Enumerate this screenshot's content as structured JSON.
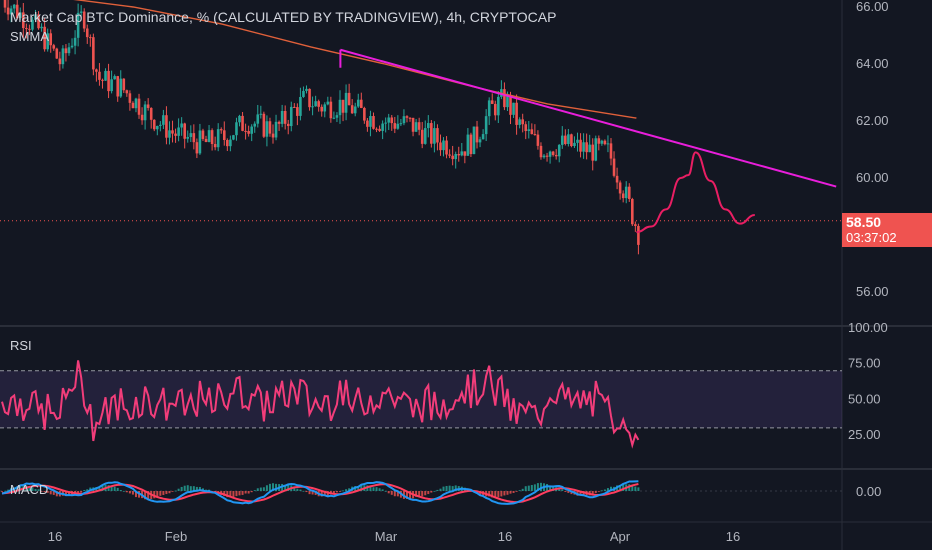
{
  "header": {
    "title": "Market Cap BTC Dominance, % (CALCULATED BY TRADINGVIEW), 4h, CRYPTOCAP",
    "indicator": "SMMA"
  },
  "price_tag": {
    "value": "58.50",
    "countdown": "03:37:02"
  },
  "panes": {
    "rsi_label": "RSI",
    "macd_label": "MACD"
  },
  "colors": {
    "background": "#131722",
    "up_candle": "#26a69a",
    "down_candle": "#ef5350",
    "smma": "#e0603a",
    "trendline": "#e91edb",
    "projection": "#e91e63",
    "rsi_line": "#f23d7a",
    "rsi_band": "#7e57c2",
    "macd_line": "#2196f3",
    "signal_line": "#ff3d5f"
  },
  "chart_data": [
    {
      "type": "candlestick",
      "title": "Market Cap BTC Dominance, % (CALCULATED BY TRADINGVIEW), 4h, CRYPTOCAP",
      "x_ticks": [
        "16",
        "Feb",
        "Mar",
        "16",
        "Apr",
        "16"
      ],
      "y_ticks": [
        "66.00",
        "64.00",
        "62.00",
        "60.00",
        "58.50",
        "56.00"
      ],
      "ylim": [
        55.0,
        66.2
      ],
      "last_price": 58.5,
      "close_path": [
        [
          0,
          66.3
        ],
        [
          0.05,
          65.2
        ],
        [
          0.08,
          64.0
        ],
        [
          0.11,
          65.8
        ],
        [
          0.13,
          63.5
        ],
        [
          0.16,
          63.2
        ],
        [
          0.2,
          62.2
        ],
        [
          0.23,
          61.6
        ],
        [
          0.27,
          61.2
        ],
        [
          0.3,
          61.4
        ],
        [
          0.33,
          62.0
        ],
        [
          0.37,
          61.7
        ],
        [
          0.41,
          62.8
        ],
        [
          0.43,
          62.5
        ],
        [
          0.46,
          62.6
        ],
        [
          0.51,
          62.0
        ],
        [
          0.55,
          61.9
        ],
        [
          0.59,
          61.3
        ],
        [
          0.62,
          61.0
        ],
        [
          0.64,
          61.4
        ],
        [
          0.66,
          62.4
        ],
        [
          0.68,
          62.8
        ],
        [
          0.7,
          61.8
        ],
        [
          0.73,
          61.0
        ],
        [
          0.76,
          61.2
        ],
        [
          0.79,
          61.0
        ],
        [
          0.82,
          60.9
        ],
        [
          0.84,
          59.6
        ],
        [
          0.86,
          58.1
        ]
      ],
      "smma": [
        [
          0,
          66.6
        ],
        [
          0.18,
          66.0
        ],
        [
          0.3,
          65.4
        ],
        [
          0.42,
          64.6
        ],
        [
          0.52,
          64.0
        ],
        [
          0.64,
          63.2
        ],
        [
          0.74,
          62.6
        ],
        [
          0.86,
          62.1
        ]
      ],
      "trendline": {
        "start": [
          0.46,
          64.5
        ],
        "end": [
          1.13,
          59.7
        ]
      },
      "projection": [
        [
          0.86,
          58.1
        ],
        [
          0.88,
          58.3
        ],
        [
          0.9,
          58.9
        ],
        [
          0.92,
          60.0
        ],
        [
          0.93,
          60.1
        ],
        [
          0.94,
          60.9
        ],
        [
          0.96,
          59.9
        ],
        [
          0.98,
          58.9
        ],
        [
          1.0,
          58.4
        ],
        [
          1.02,
          58.7
        ]
      ]
    },
    {
      "type": "line",
      "title": "RSI",
      "y_ticks": [
        "100.00",
        "75.00",
        "50.00",
        "25.00"
      ],
      "ylim": [
        0,
        100
      ],
      "band": [
        30,
        70
      ]
    },
    {
      "type": "line",
      "title": "MACD",
      "y_ticks": [
        "0.00"
      ]
    }
  ]
}
